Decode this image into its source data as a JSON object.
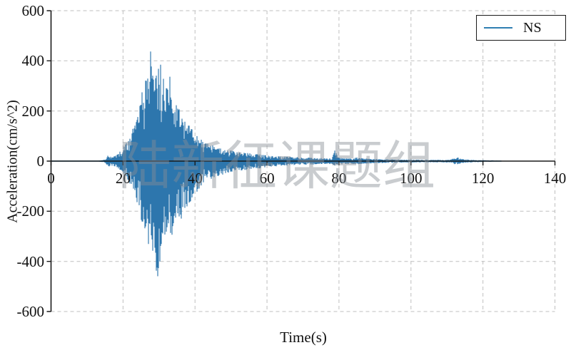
{
  "figure": {
    "watermark": "陆新征课题组",
    "background": "#ffffff"
  },
  "legend": {
    "position": "upper right",
    "entries": [
      {
        "label": "NS",
        "line_color": "#2f7fb2"
      }
    ]
  },
  "chart_data": {
    "type": "line",
    "title": "",
    "xlabel": "Time(s)",
    "ylabel": "Acceleration(cm/s^2)",
    "xlim": [
      0,
      140
    ],
    "ylim": [
      -600,
      600
    ],
    "x_ticks": [
      0,
      20,
      40,
      60,
      80,
      100,
      120,
      140
    ],
    "y_ticks": [
      -600,
      -400,
      -200,
      0,
      200,
      400,
      600
    ],
    "grid": "dashed",
    "grid_color": "#bfbfbf",
    "axis_color": "#1a1a1a",
    "legend_position": "upper right",
    "series": [
      {
        "name": "NS",
        "color": "#2d76ad",
        "kind": "seismic acceleration time history",
        "duration_s": 125,
        "peak_positive": 440,
        "peak_positive_time_s": 27.6,
        "peak_negative": -460,
        "peak_negative_time_s": 29.7,
        "envelope_t_pos_neg": [
          [
            0,
            2,
            2
          ],
          [
            12,
            2,
            2
          ],
          [
            14,
            3,
            3
          ],
          [
            15,
            7,
            6
          ],
          [
            15.8,
            26,
            22
          ],
          [
            16.5,
            20,
            22
          ],
          [
            17.2,
            18,
            17
          ],
          [
            18,
            26,
            24
          ],
          [
            19,
            36,
            34
          ],
          [
            20,
            52,
            48
          ],
          [
            21,
            74,
            68
          ],
          [
            22,
            102,
            95
          ],
          [
            23,
            140,
            130
          ],
          [
            24,
            190,
            175
          ],
          [
            25,
            262,
            230
          ],
          [
            26,
            315,
            295
          ],
          [
            27,
            392,
            335
          ],
          [
            27.6,
            442,
            365
          ],
          [
            28.2,
            398,
            392
          ],
          [
            29,
            355,
            428
          ],
          [
            29.7,
            378,
            462
          ],
          [
            30.4,
            428,
            418
          ],
          [
            31,
            338,
            372
          ],
          [
            32,
            298,
            332
          ],
          [
            33,
            342,
            308
          ],
          [
            34,
            262,
            288
          ],
          [
            35,
            228,
            255
          ],
          [
            36,
            192,
            240
          ],
          [
            37,
            168,
            205
          ],
          [
            38,
            148,
            178
          ],
          [
            39,
            135,
            155
          ],
          [
            40,
            118,
            135
          ],
          [
            41,
            100,
            115
          ],
          [
            42,
            85,
            95
          ],
          [
            43,
            76,
            84
          ],
          [
            44,
            68,
            76
          ],
          [
            45,
            62,
            70
          ],
          [
            46,
            56,
            64
          ],
          [
            47,
            52,
            58
          ],
          [
            48,
            48,
            53
          ],
          [
            50,
            42,
            46
          ],
          [
            52,
            38,
            41
          ],
          [
            54,
            34,
            36
          ],
          [
            56,
            30,
            32
          ],
          [
            58,
            27,
            29
          ],
          [
            60,
            22,
            24
          ],
          [
            62,
            20,
            22
          ],
          [
            64,
            19,
            20
          ],
          [
            66,
            17,
            18
          ],
          [
            68,
            16,
            16
          ],
          [
            70,
            15,
            15
          ],
          [
            72,
            14,
            14
          ],
          [
            74,
            13,
            13
          ],
          [
            76,
            12,
            12
          ],
          [
            78,
            12,
            12
          ],
          [
            78.9,
            45,
            20
          ],
          [
            79.4,
            26,
            16
          ],
          [
            80,
            14,
            13
          ],
          [
            81,
            12,
            12
          ],
          [
            83,
            11,
            11
          ],
          [
            85,
            15,
            13
          ],
          [
            87,
            11,
            11
          ],
          [
            89,
            9,
            9
          ],
          [
            91,
            8,
            8
          ],
          [
            94,
            7,
            7
          ],
          [
            97,
            6,
            6
          ],
          [
            100,
            6,
            6
          ],
          [
            104,
            5,
            5
          ],
          [
            108,
            5,
            5
          ],
          [
            111,
            6,
            6
          ],
          [
            112,
            13,
            12
          ],
          [
            113,
            15,
            14
          ],
          [
            113.7,
            10,
            10
          ],
          [
            115,
            7,
            6
          ],
          [
            117,
            5,
            5
          ],
          [
            119,
            4,
            4
          ],
          [
            121,
            4,
            3
          ],
          [
            123,
            3,
            3
          ],
          [
            125,
            2,
            2
          ]
        ]
      }
    ]
  }
}
